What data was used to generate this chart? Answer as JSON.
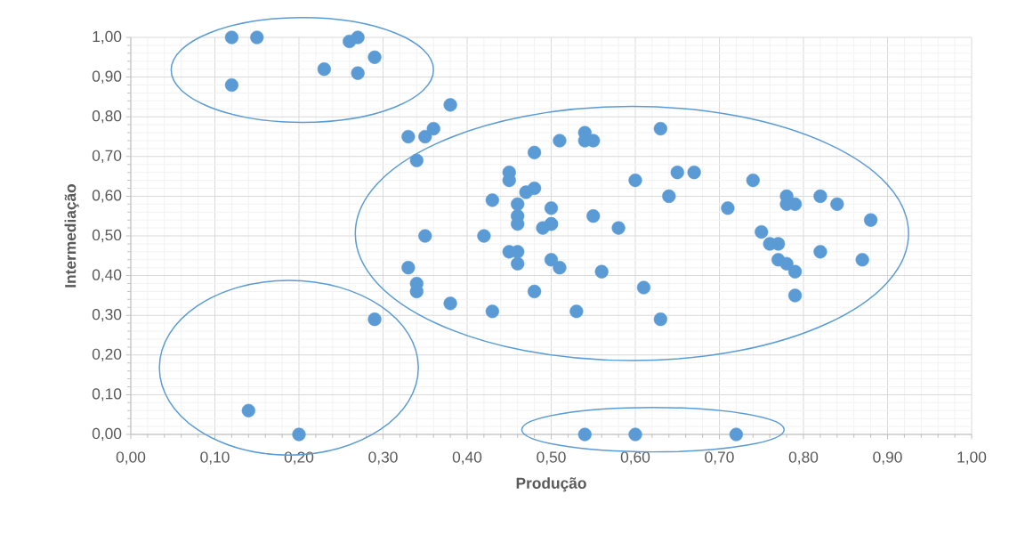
{
  "chart_data": {
    "type": "scatter",
    "xlabel": "Produção",
    "ylabel": "Intermediação",
    "color": "#5b9bd5",
    "marker": "circle",
    "grid": true,
    "x": [
      0.12,
      0.15,
      0.12,
      0.23,
      0.26,
      0.27,
      0.27,
      0.29,
      0.38,
      0.33,
      0.35,
      0.36,
      0.34,
      0.35,
      0.33,
      0.34,
      0.34,
      0.38,
      0.29,
      0.42,
      0.43,
      0.45,
      0.45,
      0.48,
      0.47,
      0.48,
      0.46,
      0.46,
      0.46,
      0.5,
      0.5,
      0.49,
      0.5,
      0.55,
      0.58,
      0.45,
      0.46,
      0.46,
      0.5,
      0.51,
      0.56,
      0.48,
      0.43,
      0.53,
      0.51,
      0.54,
      0.54,
      0.55,
      0.63,
      0.6,
      0.65,
      0.67,
      0.64,
      0.74,
      0.78,
      0.78,
      0.79,
      0.82,
      0.84,
      0.71,
      0.88,
      0.75,
      0.76,
      0.77,
      0.77,
      0.78,
      0.79,
      0.82,
      0.87,
      0.79,
      0.61,
      0.63,
      0.14,
      0.2,
      0.54,
      0.6,
      0.72
    ],
    "values": [
      1.0,
      1.0,
      0.88,
      0.92,
      0.99,
      1.0,
      0.91,
      0.95,
      0.83,
      0.75,
      0.75,
      0.77,
      0.69,
      0.5,
      0.42,
      0.38,
      0.36,
      0.33,
      0.29,
      0.5,
      0.59,
      0.66,
      0.64,
      0.71,
      0.61,
      0.62,
      0.58,
      0.55,
      0.53,
      0.57,
      0.53,
      0.52,
      0.53,
      0.55,
      0.52,
      0.46,
      0.46,
      0.43,
      0.44,
      0.42,
      0.41,
      0.36,
      0.31,
      0.31,
      0.74,
      0.76,
      0.74,
      0.74,
      0.77,
      0.64,
      0.66,
      0.66,
      0.6,
      0.64,
      0.6,
      0.58,
      0.58,
      0.6,
      0.58,
      0.57,
      0.54,
      0.51,
      0.48,
      0.48,
      0.44,
      0.43,
      0.41,
      0.46,
      0.44,
      0.35,
      0.37,
      0.29,
      0.06,
      0.0,
      0.0,
      0.0,
      0.0
    ],
    "xlim": [
      0,
      1
    ],
    "ylim": [
      0,
      1
    ],
    "xticks": [
      {
        "value": 0,
        "label": "0,00"
      },
      {
        "value": 0.1,
        "label": "0,10"
      },
      {
        "value": 0.2,
        "label": "0,20"
      },
      {
        "value": 0.3,
        "label": "0,30"
      },
      {
        "value": 0.4,
        "label": "0,40"
      },
      {
        "value": 0.5,
        "label": "0,50"
      },
      {
        "value": 0.6,
        "label": "0,60"
      },
      {
        "value": 0.7,
        "label": "0,70"
      },
      {
        "value": 0.8,
        "label": "0,80"
      },
      {
        "value": 0.9,
        "label": "0,90"
      },
      {
        "value": 1,
        "label": "1,00"
      }
    ],
    "yticks": [
      {
        "value": 0,
        "label": "0,00"
      },
      {
        "value": 0.1,
        "label": "0,10"
      },
      {
        "value": 0.2,
        "label": "0,20"
      },
      {
        "value": 0.3,
        "label": "0,30"
      },
      {
        "value": 0.4,
        "label": "0,40"
      },
      {
        "value": 0.5,
        "label": "0,50"
      },
      {
        "value": 0.6,
        "label": "0,60"
      },
      {
        "value": 0.7,
        "label": "0,70"
      },
      {
        "value": 0.8,
        "label": "0,80"
      },
      {
        "value": 0.9,
        "label": "0,90"
      },
      {
        "value": 1,
        "label": "1,00"
      }
    ]
  }
}
